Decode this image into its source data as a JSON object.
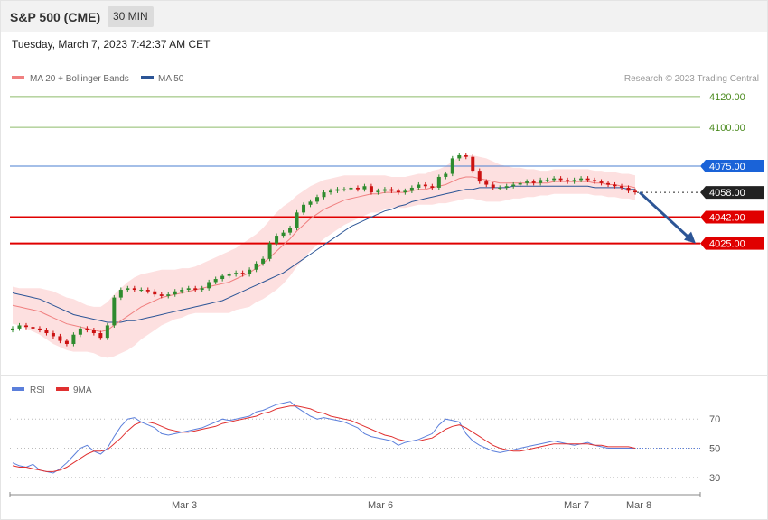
{
  "header": {
    "title": "S&P 500 (CME)",
    "timeframe": "30 MIN",
    "datetime": "Tuesday, March 7, 2023 7:42:37 AM CET"
  },
  "legend": {
    "ma20": "MA 20 + Bollinger Bands",
    "ma50": "MA 50",
    "copyright": "Research © 2023 Trading Central",
    "rsi": "RSI",
    "rsi_ma": "9MA"
  },
  "colors": {
    "up": "#2e8b2e",
    "down": "#cc1111",
    "ma20": "#f08080",
    "ma50": "#2c5596",
    "band": "#fde0e0",
    "resistance": "#8dbb6a",
    "resistance_text": "#4a8a1e",
    "pivot": "#4a7fd0",
    "support": "#e00000",
    "rsi": "#5b7fdb",
    "rsi_ma": "#e03030"
  },
  "chart_data": [
    {
      "type": "candlestick",
      "x_ticks": [
        "Mar 3",
        "Mar 6",
        "Mar 7",
        "Mar 8"
      ],
      "ylim": [
        3946,
        4124
      ],
      "levels": [
        {
          "value": 4120,
          "label": "4120.00",
          "kind": "resistance"
        },
        {
          "value": 4100,
          "label": "4100.00",
          "kind": "resistance"
        },
        {
          "value": 4075,
          "label": "4075.00",
          "kind": "pivot"
        },
        {
          "value": 4058,
          "label": "4058.00",
          "kind": "last"
        },
        {
          "value": 4042,
          "label": "4042.00",
          "kind": "support"
        },
        {
          "value": 4025,
          "label": "4025.00",
          "kind": "support"
        }
      ],
      "forecast": {
        "from": 4058,
        "to": 4025
      },
      "close": [
        3970,
        3972,
        3971,
        3970,
        3969,
        3967,
        3965,
        3962,
        3960,
        3966,
        3970,
        3969,
        3967,
        3964,
        3972,
        3990,
        3995,
        3996,
        3995,
        3995,
        3994,
        3992,
        3991,
        3992,
        3994,
        3995,
        3996,
        3995,
        3996,
        4000,
        4002,
        4004,
        4005,
        4006,
        4005,
        4008,
        4012,
        4015,
        4025,
        4030,
        4032,
        4035,
        4045,
        4050,
        4052,
        4055,
        4058,
        4059,
        4060,
        4060,
        4061,
        4060,
        4062,
        4058,
        4059,
        4060,
        4059,
        4058,
        4059,
        4061,
        4063,
        4062,
        4061,
        4068,
        4070,
        4080,
        4082,
        4081,
        4072,
        4065,
        4063,
        4061,
        4061,
        4062,
        4063,
        4064,
        4065,
        4064,
        4066,
        4066,
        4067,
        4066,
        4065,
        4066,
        4067,
        4066,
        4065,
        4064,
        4063,
        4062,
        4061,
        4059,
        4058
      ],
      "ma20": [
        3985,
        3984,
        3983,
        3982,
        3981,
        3979,
        3977,
        3975,
        3973,
        3972,
        3971,
        3970,
        3969,
        3968,
        3969,
        3972,
        3975,
        3978,
        3981,
        3984,
        3986,
        3988,
        3990,
        3991,
        3992,
        3993,
        3994,
        3995,
        3996,
        3997,
        3998,
        3999,
        4000,
        4002,
        4004,
        4006,
        4009,
        4012,
        4016,
        4020,
        4024,
        4028,
        4033,
        4037,
        4041,
        4044,
        4047,
        4049,
        4051,
        4053,
        4054,
        4055,
        4056,
        4057,
        4057,
        4058,
        4058,
        4058,
        4058,
        4059,
        4060,
        4060,
        4061,
        4062,
        4063,
        4065,
        4067,
        4068,
        4068,
        4067,
        4066,
        4065,
        4064,
        4064,
        4064,
        4064,
        4064,
        4064,
        4064,
        4064,
        4065,
        4065,
        4065,
        4065,
        4065,
        4065,
        4064,
        4064,
        4063,
        4063,
        4062,
        4062,
        4061
      ],
      "ma50": [
        3993,
        3992,
        3991,
        3990,
        3989,
        3987,
        3985,
        3983,
        3981,
        3979,
        3978,
        3977,
        3976,
        3975,
        3974,
        3974,
        3974,
        3975,
        3975,
        3976,
        3977,
        3978,
        3979,
        3980,
        3981,
        3982,
        3983,
        3984,
        3985,
        3986,
        3987,
        3988,
        3990,
        3992,
        3994,
        3996,
        3998,
        4000,
        4002,
        4004,
        4006,
        4009,
        4012,
        4015,
        4018,
        4021,
        4024,
        4027,
        4030,
        4033,
        4036,
        4038,
        4040,
        4042,
        4044,
        4046,
        4047,
        4049,
        4050,
        4052,
        4053,
        4054,
        4055,
        4056,
        4057,
        4058,
        4059,
        4060,
        4060,
        4061,
        4061,
        4061,
        4061,
        4061,
        4062,
        4062,
        4062,
        4062,
        4062,
        4062,
        4062,
        4062,
        4062,
        4062,
        4062,
        4062,
        4061,
        4061,
        4061,
        4061,
        4061,
        4060,
        4060
      ],
      "band_width": [
        12,
        12,
        13,
        14,
        15,
        16,
        17,
        17,
        17,
        17,
        16,
        15,
        15,
        16,
        18,
        20,
        21,
        22,
        22,
        21,
        20,
        19,
        18,
        17,
        16,
        16,
        15,
        15,
        16,
        17,
        18,
        19,
        20,
        20,
        21,
        22,
        22,
        23,
        24,
        25,
        25,
        24,
        23,
        22,
        21,
        20,
        19,
        18,
        17,
        16,
        15,
        14,
        13,
        12,
        12,
        11,
        10,
        10,
        10,
        10,
        10,
        10,
        11,
        11,
        12,
        13,
        14,
        14,
        14,
        14,
        14,
        13,
        12,
        11,
        10,
        10,
        9,
        9,
        8,
        8,
        8,
        8,
        8,
        8,
        8,
        8,
        8,
        8,
        8,
        8,
        8,
        8,
        8
      ]
    },
    {
      "type": "line",
      "title": "RSI",
      "x_ticks": [
        "Mar 3",
        "Mar 6",
        "Mar 7",
        "Mar 8"
      ],
      "ylim": [
        20,
        85
      ],
      "y_ticks": [
        70,
        50,
        30
      ],
      "series": [
        {
          "name": "RSI",
          "values": [
            40,
            38,
            37,
            39,
            35,
            34,
            33,
            36,
            40,
            45,
            50,
            52,
            48,
            46,
            50,
            58,
            65,
            70,
            71,
            68,
            66,
            64,
            60,
            59,
            60,
            61,
            62,
            63,
            64,
            66,
            68,
            70,
            69,
            70,
            71,
            72,
            75,
            76,
            78,
            80,
            81,
            82,
            78,
            75,
            72,
            70,
            71,
            70,
            69,
            68,
            66,
            64,
            60,
            58,
            57,
            56,
            55,
            52,
            54,
            55,
            56,
            58,
            60,
            66,
            70,
            69,
            68,
            60,
            55,
            52,
            50,
            48,
            47,
            48,
            49,
            50,
            51,
            52,
            53,
            54,
            55,
            54,
            53,
            52,
            53,
            54,
            52,
            51,
            50,
            50,
            50,
            50,
            50
          ]
        },
        {
          "name": "9MA",
          "values": [
            38,
            37,
            37,
            36,
            35,
            34,
            34,
            35,
            37,
            40,
            43,
            46,
            48,
            48,
            49,
            53,
            57,
            62,
            66,
            68,
            68,
            67,
            65,
            63,
            62,
            61,
            61,
            62,
            63,
            64,
            65,
            67,
            68,
            69,
            70,
            71,
            72,
            74,
            75,
            77,
            78,
            79,
            79,
            78,
            77,
            75,
            74,
            72,
            71,
            70,
            69,
            67,
            65,
            63,
            61,
            59,
            58,
            56,
            55,
            55,
            55,
            56,
            57,
            60,
            63,
            65,
            66,
            64,
            61,
            58,
            55,
            52,
            50,
            49,
            48,
            48,
            49,
            50,
            51,
            52,
            53,
            53,
            53,
            53,
            53,
            53,
            52,
            52,
            51,
            51,
            51,
            51,
            50
          ]
        }
      ]
    }
  ]
}
